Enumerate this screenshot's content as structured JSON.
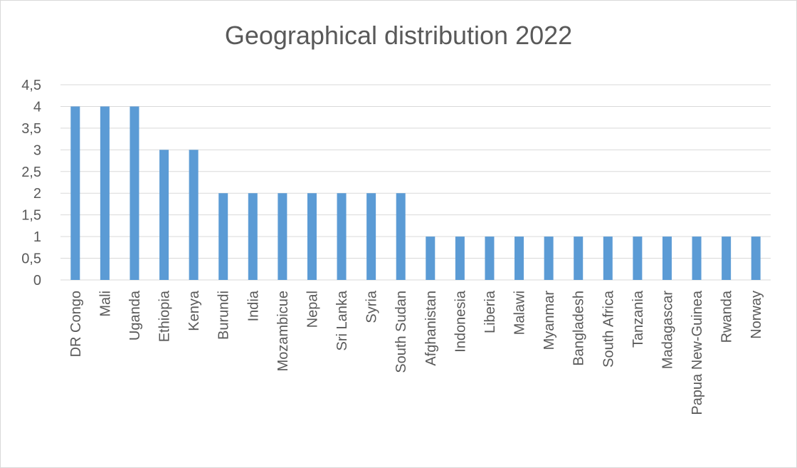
{
  "chart_data": {
    "type": "bar",
    "title": "Geographical distribution 2022",
    "xlabel": "",
    "ylabel": "",
    "ylim": [
      0,
      4.5
    ],
    "yticks": [
      "0",
      "0,5",
      "1",
      "1,5",
      "2",
      "2,5",
      "3",
      "3,5",
      "4",
      "4,5"
    ],
    "grid": true,
    "legend": "none",
    "bar_color": "#5b9bd5",
    "categories": [
      "DR Congo",
      "Mali",
      "Uganda",
      "Ethiopia",
      "Kenya",
      "Burundi",
      "India",
      "Mozambicue",
      "Nepal",
      "Sri Lanka",
      "Syria",
      "South Sudan",
      "Afghanistan",
      "Indonesia",
      "Liberia",
      "Malawi",
      "Myanmar",
      "Bangladesh",
      "South Africa",
      "Tanzania",
      "Madagascar",
      "Papua New-Guinea",
      "Rwanda",
      "Norway"
    ],
    "values": [
      4,
      4,
      4,
      3,
      3,
      2,
      2,
      2,
      2,
      2,
      2,
      2,
      1,
      1,
      1,
      1,
      1,
      1,
      1,
      1,
      1,
      1,
      1,
      1
    ]
  }
}
